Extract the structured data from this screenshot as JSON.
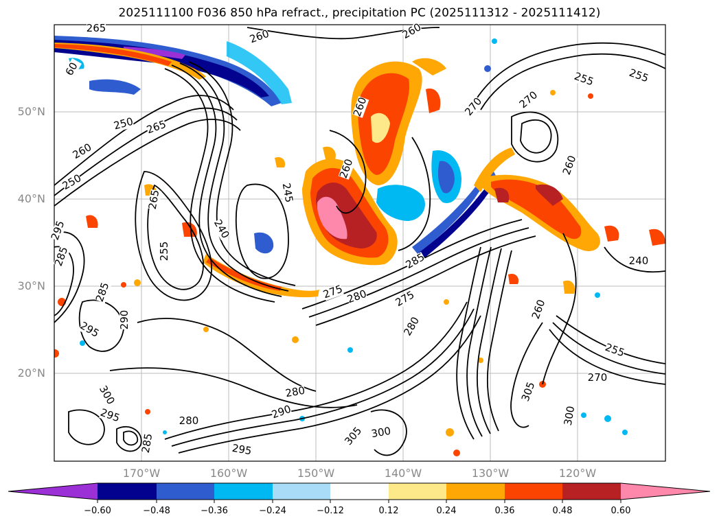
{
  "title": "2025111100 F036 850 hPa refract., precipitation PC (2025111312 - 2025111412)",
  "map": {
    "lat_labels": [
      "50°N",
      "40°N",
      "30°N",
      "20°N"
    ],
    "lon_labels": [
      "170°W",
      "160°W",
      "150°W",
      "140°W",
      "130°W",
      "120°W"
    ],
    "contour_labels": [
      "265",
      "260",
      "260",
      "60",
      "265",
      "250",
      "260",
      "250",
      "295",
      "285",
      "270",
      "270",
      "255",
      "260",
      "260",
      "245",
      "240",
      "255",
      "265",
      "255",
      "285",
      "290",
      "295",
      "275",
      "280",
      "275",
      "285",
      "280",
      "260",
      "255",
      "300",
      "295",
      "280",
      "285",
      "305",
      "300",
      "295",
      "290",
      "280",
      "270",
      "305",
      "300",
      "260",
      "240"
    ]
  },
  "colorbar": {
    "ticks": [
      "−0.60",
      "−0.48",
      "−0.36",
      "−0.24",
      "−0.12",
      "0.12",
      "0.24",
      "0.36",
      "0.48",
      "0.60"
    ],
    "colors": {
      "under": "#9a30d6",
      "c1": "#02028e",
      "c2": "#2f5dd0",
      "c3": "#00b9f2",
      "c4": "#a9dcf7",
      "c5": "#ffffff",
      "c6": "#fde98a",
      "c7": "#fea705",
      "c8": "#fb4400",
      "c9": "#b72124",
      "over": "#fd88ab"
    }
  }
}
